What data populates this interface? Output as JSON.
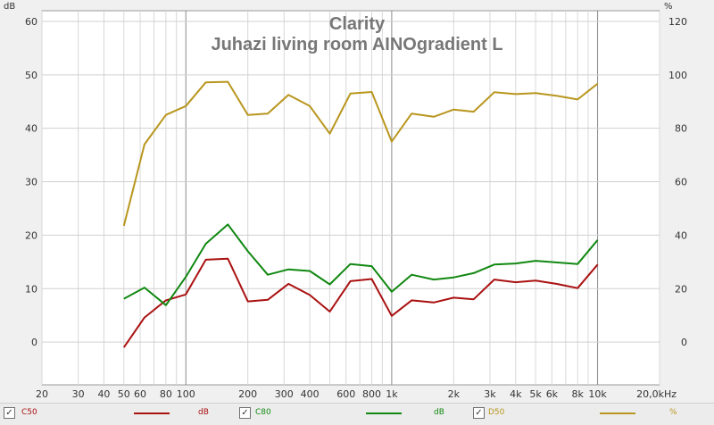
{
  "chart_data": {
    "type": "line",
    "title": "Clarity",
    "subtitle": "Juhazi living room AINOgradient L",
    "ylabel_left": "dB",
    "ylabel_right": "%",
    "x_scale": "log",
    "xlim": [
      20,
      20000
    ],
    "x_ticks": [
      {
        "v": 20,
        "label": "20"
      },
      {
        "v": 30,
        "label": "30"
      },
      {
        "v": 40,
        "label": "40"
      },
      {
        "v": 50,
        "label": "50"
      },
      {
        "v": 60,
        "label": "60"
      },
      {
        "v": 80,
        "label": "80"
      },
      {
        "v": 100,
        "label": "100"
      },
      {
        "v": 200,
        "label": "200"
      },
      {
        "v": 300,
        "label": "300"
      },
      {
        "v": 400,
        "label": "400"
      },
      {
        "v": 600,
        "label": "600"
      },
      {
        "v": 800,
        "label": "800"
      },
      {
        "v": 1000,
        "label": "1k"
      },
      {
        "v": 2000,
        "label": "2k"
      },
      {
        "v": 3000,
        "label": "3k"
      },
      {
        "v": 4000,
        "label": "4k"
      },
      {
        "v": 5000,
        "label": "5k"
      },
      {
        "v": 6000,
        "label": "6k"
      },
      {
        "v": 8000,
        "label": "8k"
      },
      {
        "v": 10000,
        "label": "10k"
      },
      {
        "v": 20000,
        "label": "20,0kHz"
      }
    ],
    "ylim_left": [
      -8,
      62
    ],
    "y_ticks_left": [
      0,
      10,
      20,
      30,
      40,
      50,
      60
    ],
    "ylim_right": [
      -16,
      124
    ],
    "y_ticks_right": [
      0,
      20,
      40,
      60,
      80,
      100,
      120
    ],
    "grid": true,
    "x": [
      50,
      63,
      80,
      100,
      125,
      160,
      200,
      250,
      315,
      400,
      500,
      630,
      800,
      1000,
      1250,
      1600,
      2000,
      2500,
      3150,
      4000,
      5000,
      6300,
      8000,
      10000
    ],
    "series": [
      {
        "name": "C50",
        "unit": "dB",
        "axis": "left",
        "color": "#aa1111",
        "values": [
          -1,
          4.6,
          7.8,
          8.9,
          15.4,
          15.6,
          7.6,
          7.9,
          10.9,
          8.8,
          5.7,
          11.4,
          11.8,
          4.9,
          7.8,
          7.4,
          8.3,
          8.0,
          11.7,
          11.2,
          11.5,
          10.9,
          10.1,
          14.5
        ]
      },
      {
        "name": "C80",
        "unit": "dB",
        "axis": "left",
        "color": "#118811",
        "values": [
          8.1,
          10.2,
          6.9,
          12.2,
          18.4,
          22.0,
          17.0,
          12.6,
          13.6,
          13.3,
          10.8,
          14.6,
          14.2,
          9.4,
          12.6,
          11.7,
          12.1,
          12.9,
          14.5,
          14.7,
          15.2,
          14.9,
          14.6,
          19.1
        ]
      },
      {
        "name": "D50",
        "unit": "%",
        "axis": "right",
        "color": "#b8961e",
        "values": [
          43.5,
          74,
          85,
          88.3,
          97.2,
          97.4,
          85,
          85.5,
          92.5,
          88.3,
          78,
          93,
          93.6,
          75,
          85.5,
          84.3,
          87,
          86.2,
          93.5,
          92.8,
          93.2,
          92.2,
          90.8,
          96.7
        ]
      }
    ]
  },
  "legend": [
    {
      "name": "C50",
      "unit": "dB",
      "color": "#aa1111",
      "checked": true
    },
    {
      "name": "C80",
      "unit": "dB",
      "color": "#118811",
      "checked": true
    },
    {
      "name": "D50",
      "unit": "%",
      "color": "#b8961e",
      "checked": true
    }
  ]
}
